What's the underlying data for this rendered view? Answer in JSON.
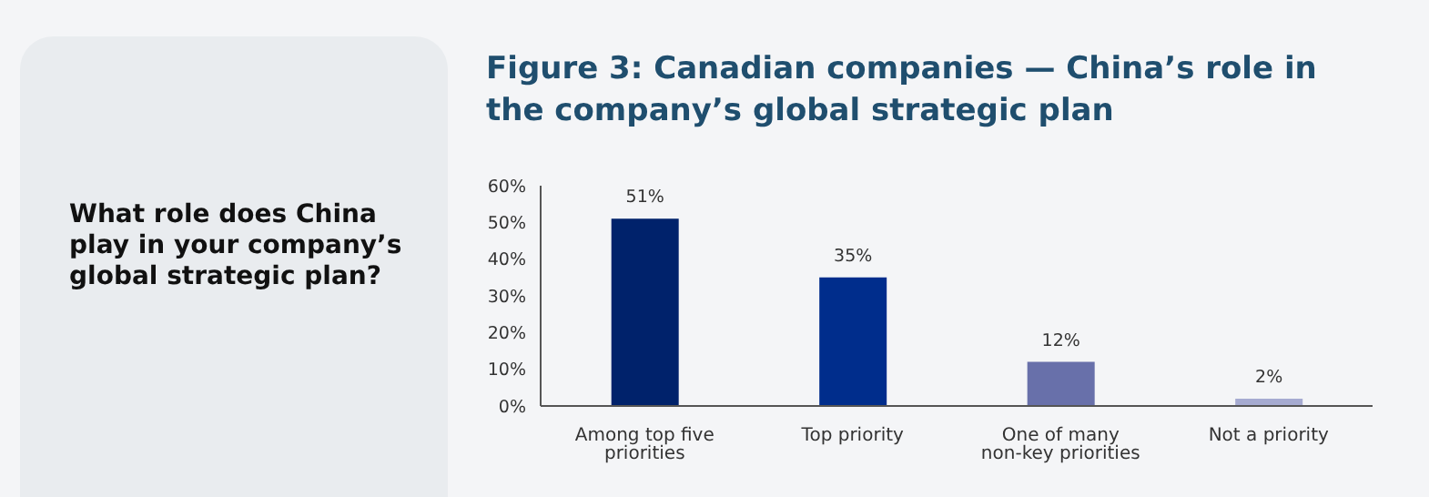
{
  "chart_data": {
    "type": "bar",
    "title": "Figure 3: Canadian companies — China’s role in the company’s global strategic plan",
    "annotations": [
      "What role does China play in your company’s global strategic plan?"
    ],
    "categories": [
      "Among top five priorities",
      "Top priority",
      "One of many non-key priorities",
      "Not a priority"
    ],
    "values": [
      51,
      35,
      12,
      2
    ],
    "colors": [
      "#00226b",
      "#002d8c",
      "#6870aa",
      "#a6abd1"
    ],
    "value_labels": [
      "51%",
      "35%",
      "12%",
      "2%"
    ],
    "ylim": [
      0,
      60
    ],
    "yticks": [
      {
        "value": 0,
        "label": "0%"
      },
      {
        "value": 10,
        "label": "10%"
      },
      {
        "value": 20,
        "label": "20%"
      },
      {
        "value": 30,
        "label": "30%"
      },
      {
        "value": 40,
        "label": "40%"
      },
      {
        "value": 50,
        "label": "50%"
      },
      {
        "value": 60,
        "label": "60%"
      }
    ]
  }
}
